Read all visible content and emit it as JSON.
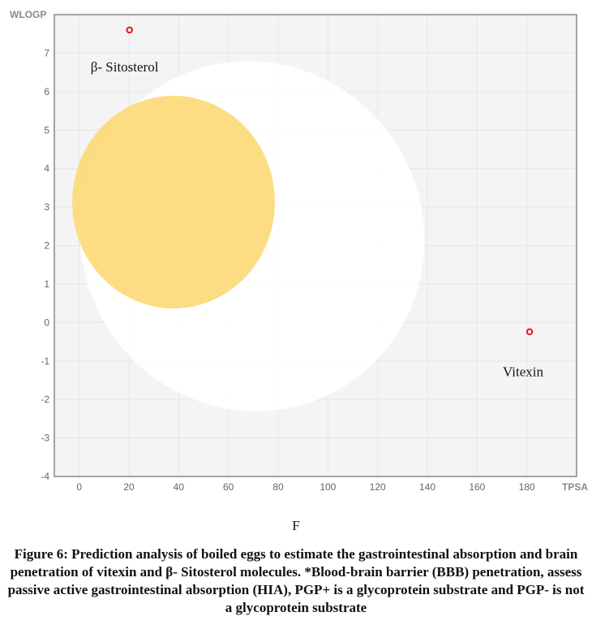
{
  "chart_data": {
    "type": "scatter",
    "xlabel": "TPSA",
    "ylabel": "WLOGP",
    "xlim": [
      -10,
      200
    ],
    "ylim": [
      -4,
      8
    ],
    "x_ticks": [
      0,
      20,
      40,
      60,
      80,
      100,
      120,
      140,
      160,
      180
    ],
    "y_ticks": [
      -4,
      -3,
      -2,
      -1,
      0,
      1,
      2,
      3,
      4,
      5,
      6,
      7
    ],
    "grid": true,
    "regions": [
      {
        "region": "white",
        "color": "#ffffff"
      },
      {
        "region": "yolk",
        "color": "#fdd977"
      }
    ],
    "points": [
      {
        "label": "β- Sitosterol",
        "x": 20.23,
        "y": 7.6,
        "color": "#e8222a"
      },
      {
        "label": "Vitexin",
        "x": 181.1,
        "y": -0.24,
        "color": "#e8222a"
      }
    ]
  },
  "panel_letter": "F",
  "caption": "Figure 6: Prediction analysis of boiled eggs to estimate the gastrointestinal absorption and brain penetration of vitexin and β- Sitosterol molecules. *Blood-brain barrier (BBB) penetration, assess passive active gastrointestinal absorption (HIA), PGP+ is a glycoprotein substrate and PGP- is not a glycoprotein substrate"
}
